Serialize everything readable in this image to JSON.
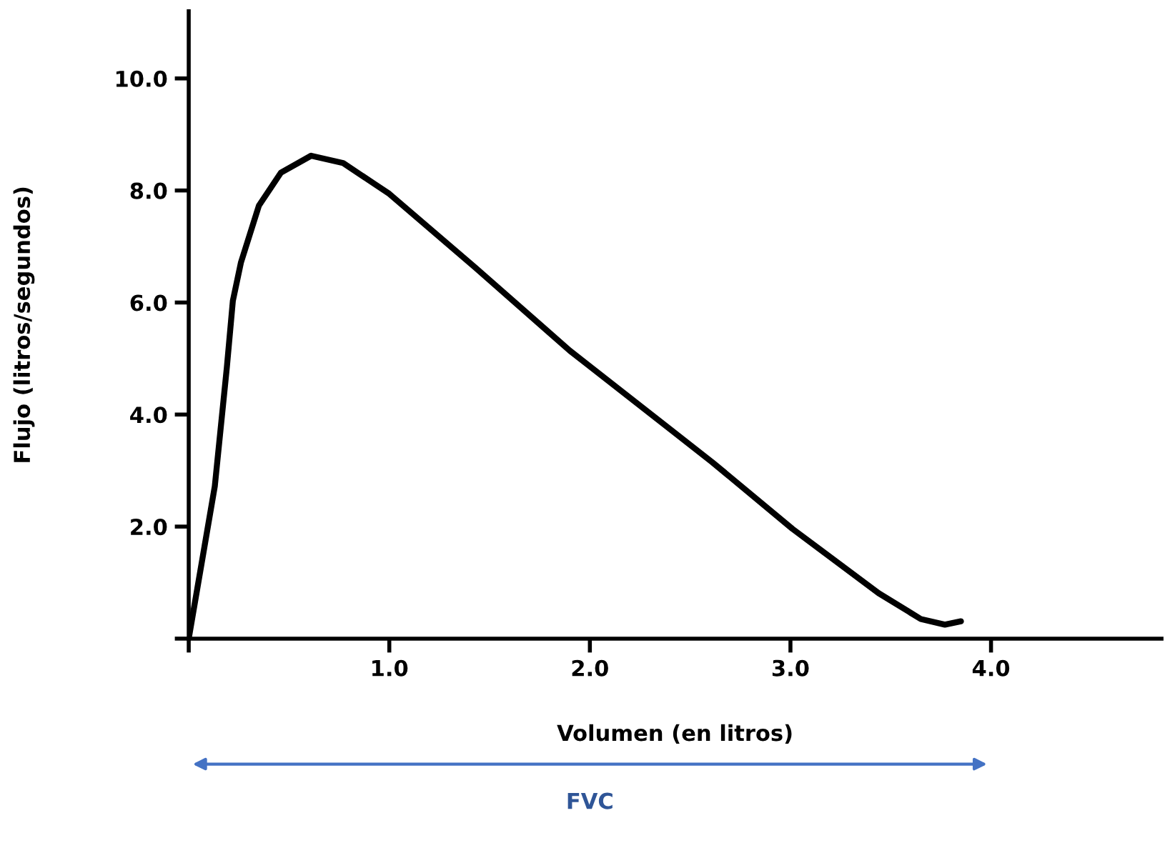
{
  "chart_data": {
    "type": "line",
    "xlabel": "Volumen (en litros)",
    "ylabel": "Flujo (litros/segundos)",
    "annotations": [
      "FVC"
    ],
    "series": [
      {
        "color": "#000000",
        "x": [
          0,
          0.13,
          0.19,
          0.22,
          0.26,
          0.35,
          0.46,
          0.61,
          0.77,
          1.0,
          1.43,
          1.9,
          2.4,
          2.61,
          3.01,
          3.44,
          3.65,
          3.77,
          3.85
        ],
        "values": [
          0,
          2.72,
          4.84,
          6.03,
          6.71,
          7.73,
          8.32,
          8.62,
          8.49,
          7.94,
          6.62,
          5.14,
          3.74,
          3.15,
          1.96,
          0.81,
          0.35,
          0.25,
          0.31
        ]
      }
    ],
    "xlim": [
      0,
      4.85
    ],
    "ylim": [
      0,
      11.2
    ],
    "xticks": [
      {
        "value": 0,
        "label": null
      },
      {
        "value": 1,
        "label": "1.0"
      },
      {
        "value": 2,
        "label": "2.0"
      },
      {
        "value": 3,
        "label": "3.0"
      },
      {
        "value": 4,
        "label": "4.0"
      }
    ],
    "yticks": [
      {
        "value": 0,
        "label": null
      },
      {
        "value": 2,
        "label": "2.0"
      },
      {
        "value": 4,
        "label": "4.0"
      },
      {
        "value": 6,
        "label": "6.0"
      },
      {
        "value": 8,
        "label": "8.0"
      },
      {
        "value": 10,
        "label": "10.0"
      }
    ],
    "grid": false,
    "legend": false,
    "marker": "none",
    "line_style": "solid"
  }
}
